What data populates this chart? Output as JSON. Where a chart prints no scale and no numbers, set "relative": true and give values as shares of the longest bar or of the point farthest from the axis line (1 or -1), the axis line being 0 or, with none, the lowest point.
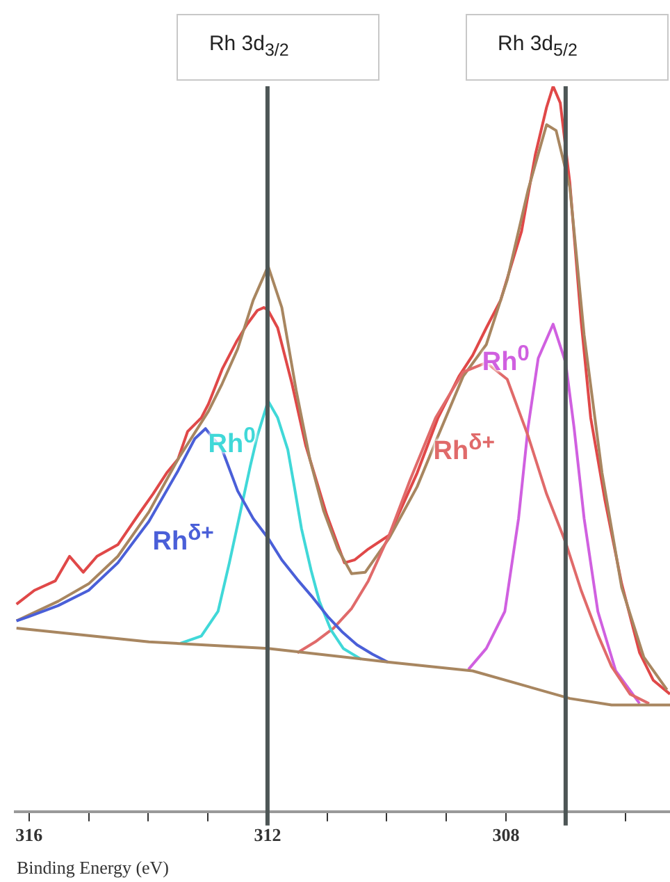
{
  "chart_data": {
    "type": "line",
    "relative": true,
    "xlabel": "Binding Energy (eV)",
    "xlim": [
      316.23,
      305.25
    ],
    "xticks": [
      316,
      {
        "value": 315,
        "label": null
      },
      {
        "value": 314,
        "label": null
      },
      {
        "value": 313,
        "label": null
      },
      312,
      {
        "value": 311,
        "label": null
      },
      {
        "value": 310,
        "label": null
      },
      {
        "value": 309,
        "label": null
      },
      308,
      {
        "value": 307,
        "label": null
      },
      {
        "value": 306,
        "label": null
      }
    ],
    "grid": false,
    "legend": false,
    "marker": "none",
    "line_style": "solid",
    "ref_lines": [
      {
        "axis": "x",
        "value": 312,
        "label": "Rh 3d$_{3/2}$",
        "color": "#4d5656"
      },
      {
        "axis": "x",
        "value": 307,
        "label": "Rh 3d$_{5/2}$",
        "color": "#4d5656"
      }
    ],
    "series": [
      {
        "color": "#a88660",
        "x": [
          316.21,
          313.99,
          311.99,
          309.96,
          308.56,
          306.93,
          306.23,
          305.25
        ],
        "values": [
          0.253,
          0.234,
          0.225,
          0.206,
          0.194,
          0.156,
          0.147,
          0.147
        ]
      },
      {
        "name": "Rh$^{δ+}$",
        "color": "#4a5fd8",
        "x": [
          316.21,
          316.0,
          315.51,
          315.0,
          314.51,
          313.99,
          313.5,
          313.22,
          313.04,
          312.76,
          312.5,
          312.24,
          311.99,
          311.76,
          311.5,
          311.24,
          310.99,
          310.75,
          310.5,
          310.24,
          309.98
        ],
        "values": [
          0.263,
          0.269,
          0.284,
          0.305,
          0.343,
          0.4,
          0.47,
          0.514,
          0.528,
          0.499,
          0.442,
          0.404,
          0.377,
          0.347,
          0.32,
          0.295,
          0.269,
          0.248,
          0.23,
          0.217,
          0.206
        ]
      },
      {
        "name": "Rh$^{0}$",
        "color": "#40d8d8",
        "x": [
          313.46,
          313.11,
          312.83,
          312.64,
          312.45,
          312.29,
          312.17,
          311.99,
          311.83,
          311.66,
          311.55,
          311.43,
          311.27,
          311.13,
          310.94,
          310.73,
          310.43
        ],
        "values": [
          0.232,
          0.242,
          0.276,
          0.343,
          0.415,
          0.476,
          0.518,
          0.566,
          0.543,
          0.499,
          0.448,
          0.39,
          0.333,
          0.29,
          0.251,
          0.225,
          0.21
        ]
      },
      {
        "name": "Rh$^{δ+}$",
        "color": "#e06a6a",
        "x": [
          311.5,
          311.2,
          310.89,
          310.59,
          310.31,
          309.96,
          309.61,
          309.18,
          308.72,
          308.33,
          307.98,
          307.63,
          307.32,
          307.0,
          306.74,
          306.46,
          306.23,
          305.92,
          305.6
        ],
        "values": [
          0.219,
          0.234,
          0.253,
          0.28,
          0.318,
          0.381,
          0.457,
          0.543,
          0.606,
          0.619,
          0.596,
          0.518,
          0.438,
          0.371,
          0.305,
          0.244,
          0.2,
          0.162,
          0.149
        ]
      },
      {
        "name": "Rh$^{0}$",
        "color": "#d060e0",
        "x": [
          308.63,
          308.33,
          308.02,
          307.79,
          307.63,
          307.46,
          307.21,
          307.0,
          306.86,
          306.69,
          306.46,
          306.16,
          305.76
        ],
        "values": [
          0.196,
          0.225,
          0.276,
          0.404,
          0.53,
          0.625,
          0.672,
          0.619,
          0.53,
          0.404,
          0.276,
          0.194,
          0.149
        ]
      },
      {
        "color": "#a88660",
        "x": [
          316.21,
          315.51,
          315.0,
          314.51,
          313.99,
          313.5,
          312.99,
          312.76,
          312.5,
          312.24,
          311.99,
          311.76,
          311.52,
          311.29,
          311.06,
          310.82,
          310.59,
          310.36,
          309.96,
          309.49,
          309.18,
          308.72,
          308.33,
          307.98,
          307.63,
          307.32,
          307.16,
          306.93,
          306.69,
          306.39,
          306.06,
          305.69,
          305.3
        ],
        "values": [
          0.263,
          0.29,
          0.314,
          0.352,
          0.413,
          0.486,
          0.552,
          0.59,
          0.638,
          0.705,
          0.752,
          0.695,
          0.581,
          0.486,
          0.415,
          0.362,
          0.328,
          0.33,
          0.377,
          0.448,
          0.51,
          0.6,
          0.644,
          0.733,
          0.857,
          0.947,
          0.939,
          0.861,
          0.657,
          0.467,
          0.309,
          0.213,
          0.168
        ]
      },
      {
        "color": "#e04848",
        "x": [
          316.21,
          315.91,
          315.56,
          315.32,
          315.09,
          314.86,
          314.51,
          314.16,
          313.92,
          313.69,
          313.5,
          313.34,
          313.11,
          312.99,
          312.76,
          312.52,
          312.34,
          312.17,
          312.06,
          311.99,
          311.83,
          311.59,
          311.36,
          311.01,
          310.71,
          310.54,
          310.31,
          309.96,
          309.49,
          309.14,
          308.79,
          308.56,
          308.33,
          308.09,
          307.74,
          307.51,
          307.32,
          307.21,
          307.09,
          306.93,
          306.74,
          306.58,
          306.34,
          306.06,
          305.76,
          305.53,
          305.25
        ],
        "values": [
          0.286,
          0.305,
          0.318,
          0.352,
          0.33,
          0.352,
          0.368,
          0.41,
          0.438,
          0.467,
          0.486,
          0.524,
          0.543,
          0.562,
          0.61,
          0.648,
          0.672,
          0.691,
          0.695,
          0.691,
          0.667,
          0.59,
          0.505,
          0.41,
          0.343,
          0.347,
          0.362,
          0.381,
          0.467,
          0.543,
          0.6,
          0.629,
          0.667,
          0.705,
          0.8,
          0.905,
          0.971,
          1,
          0.977,
          0.867,
          0.676,
          0.543,
          0.429,
          0.314,
          0.219,
          0.181,
          0.162
        ]
      }
    ]
  }
}
